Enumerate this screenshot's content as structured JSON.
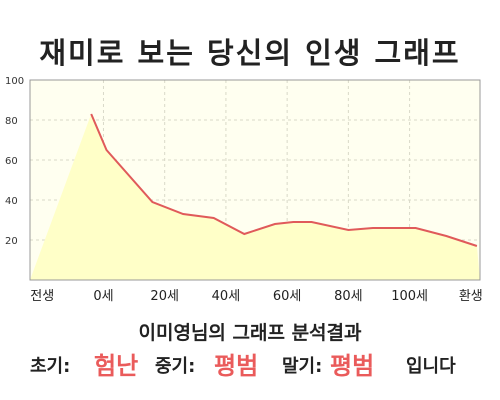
{
  "title": "재미로 보는 당신의 인생 그래프",
  "chart_data": {
    "type": "area",
    "title": "재미로 보는 당신의 인생 그래프",
    "x": [
      "전생",
      "0세",
      "20세",
      "40세",
      "60세",
      "80세",
      "100세",
      "환생"
    ],
    "x_positions": [
      -1,
      0,
      1,
      2,
      3,
      4,
      5,
      6
    ],
    "series": [
      {
        "points": [
          [
            -0.2,
            83
          ],
          [
            0.05,
            65
          ],
          [
            0.8,
            39
          ],
          [
            1.3,
            33
          ],
          [
            1.8,
            31
          ],
          [
            2.3,
            23
          ],
          [
            2.8,
            28
          ],
          [
            3.1,
            29
          ],
          [
            3.4,
            29
          ],
          [
            4.0,
            25
          ],
          [
            4.4,
            26
          ],
          [
            4.8,
            26
          ],
          [
            5.1,
            26
          ],
          [
            5.6,
            22
          ],
          [
            6.1,
            17
          ]
        ]
      }
    ],
    "ylim": [
      0,
      100
    ],
    "yticks": [
      20,
      40,
      60,
      80,
      100
    ],
    "xlabel": "",
    "ylabel": "",
    "grid": true,
    "line_color": "#e05a5a",
    "fill_color": "#ffffc8",
    "bg_color": "#fffff0"
  },
  "summary": "이미영님의 그래프 분석결과",
  "result": {
    "early_label": "초기:",
    "early_value": "험난",
    "mid_label": "중기:",
    "mid_value": "평범",
    "late_label": "말기:",
    "late_value": "평범",
    "suffix": "입니다"
  },
  "colors": {
    "accent": "#ea5b5b",
    "line": "#e05a5a",
    "area": "#ffffc8"
  }
}
